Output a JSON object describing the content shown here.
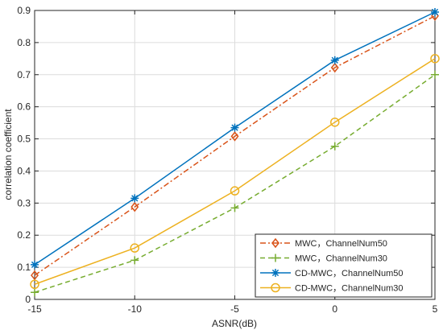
{
  "chart_data": {
    "type": "line",
    "title": "",
    "xlabel": "ASNR(dB)",
    "ylabel": "correlation coefficient",
    "x": [
      -15,
      -10,
      -5,
      0,
      5
    ],
    "xlim": [
      -15,
      5
    ],
    "ylim": [
      0,
      0.9
    ],
    "xticks": [
      "-15",
      "-10",
      "-5",
      "0",
      "5"
    ],
    "yticks": [
      "0",
      "0.1",
      "0.2",
      "0.3",
      "0.4",
      "0.5",
      "0.6",
      "0.7",
      "0.8",
      "0.9"
    ],
    "grid": true,
    "legend_position": "bottom-right",
    "series": [
      {
        "name": "MWC，ChannelNum50",
        "values": [
          0.075,
          0.288,
          0.508,
          0.722,
          0.883
        ],
        "color": "#D95319",
        "line_style": "dash-dot",
        "marker": "diamond"
      },
      {
        "name": "MWC，ChannelNum30",
        "values": [
          0.022,
          0.122,
          0.285,
          0.477,
          0.7
        ],
        "color": "#77AC30",
        "line_style": "dashed",
        "marker": "plus"
      },
      {
        "name": "CD-MWC，ChannelNum50",
        "values": [
          0.108,
          0.315,
          0.535,
          0.745,
          0.895
        ],
        "color": "#0072BD",
        "line_style": "solid",
        "marker": "asterisk"
      },
      {
        "name": "CD-MWC，ChannelNum30",
        "values": [
          0.047,
          0.16,
          0.338,
          0.552,
          0.75
        ],
        "color": "#EDB120",
        "line_style": "solid",
        "marker": "circle"
      }
    ]
  }
}
